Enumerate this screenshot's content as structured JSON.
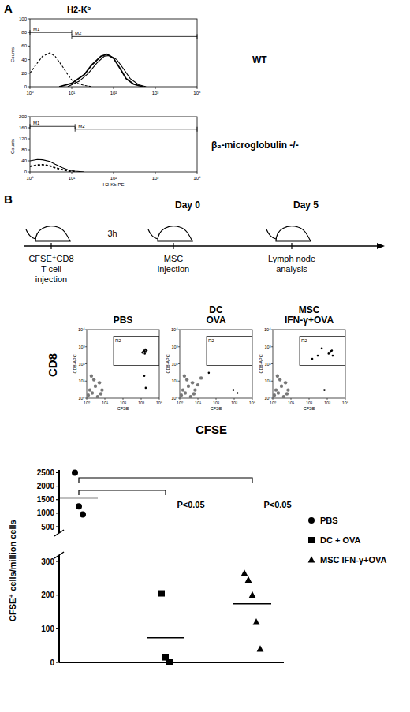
{
  "panel_labels": [
    "A",
    "B"
  ],
  "shared_labels": {
    "dot_plot_y": "CD8",
    "dot_plot_x": "CFSE"
  },
  "timeline": {
    "steps": [
      [
        "CFSE⁺CD8",
        "T cell",
        "injection"
      ],
      [
        "MSC",
        "injection"
      ],
      [
        "Lymph node",
        "analysis"
      ]
    ],
    "interval": "3h",
    "day_labels": [
      {
        "label": "Day 0",
        "step": 1
      },
      {
        "label": "Day 5",
        "step": 2
      }
    ]
  },
  "chart_data": [
    {
      "type": "line",
      "title": "H2-Kᵇ",
      "subtitle": "WT",
      "y_label": "Counts",
      "log": "x",
      "xlim": [
        1,
        10000
      ],
      "xticks": [
        {
          "value": 1,
          "label": "10⁰"
        },
        {
          "value": 10,
          "label": "10¹"
        },
        {
          "value": 100,
          "label": "10²"
        },
        {
          "value": 1000,
          "label": "10³"
        },
        {
          "value": 10000,
          "label": "10⁴"
        }
      ],
      "ylim": [
        0,
        100
      ],
      "yticks": [
        0,
        20,
        40,
        60,
        80,
        100
      ],
      "series": [
        {
          "color": "#000000",
          "line_style": "dashed",
          "x": [
            1,
            1.5,
            2,
            3,
            4,
            6,
            8,
            10,
            15,
            20,
            30
          ],
          "values": [
            20,
            35,
            45,
            50,
            45,
            30,
            18,
            10,
            4,
            2,
            0
          ]
        },
        {
          "color": "#000000",
          "line_style": "solid",
          "x": [
            5,
            10,
            20,
            30,
            50,
            70,
            100,
            150,
            200,
            300,
            500
          ],
          "values": [
            0,
            5,
            18,
            32,
            45,
            48,
            42,
            25,
            12,
            4,
            0
          ]
        },
        {
          "color": "#000000",
          "line_style": "solid",
          "x": [
            8,
            15,
            25,
            40,
            60,
            80,
            120,
            180,
            250,
            400,
            600
          ],
          "values": [
            0,
            8,
            20,
            35,
            45,
            46,
            40,
            25,
            12,
            3,
            0
          ]
        }
      ],
      "gates": [
        {
          "label": "M1",
          "x": [
            1,
            10
          ],
          "y": 80
        },
        {
          "label": "M2",
          "x": [
            10,
            10000
          ],
          "y": 74
        }
      ]
    },
    {
      "type": "line",
      "subtitle": "β₂-microglobulin -/-",
      "y_label": "Counts",
      "x_label": "H2-Kb-PE",
      "log": "x",
      "xlim": [
        1,
        10000
      ],
      "xticks": [
        {
          "value": 1,
          "label": "10⁰"
        },
        {
          "value": 10,
          "label": "10¹"
        },
        {
          "value": 100,
          "label": "10²"
        },
        {
          "value": 1000,
          "label": "10³"
        },
        {
          "value": 10000,
          "label": "10⁴"
        }
      ],
      "ylim": [
        0,
        200
      ],
      "yticks": [
        0,
        40,
        80,
        120,
        160,
        200
      ],
      "series": [
        {
          "color": "#000000",
          "line_style": "solid",
          "x": [
            1,
            1.5,
            2,
            3,
            4,
            6,
            8,
            12,
            20
          ],
          "values": [
            40,
            45,
            44,
            38,
            28,
            15,
            8,
            3,
            0
          ]
        },
        {
          "color": "#000000",
          "line_style": "dashed",
          "x": [
            1,
            1.5,
            2,
            3,
            4,
            6,
            8,
            12
          ],
          "values": [
            20,
            25,
            26,
            22,
            15,
            8,
            4,
            0
          ]
        }
      ],
      "gates": [
        {
          "label": "M1",
          "x": [
            1,
            12
          ],
          "y": 165
        },
        {
          "label": "M2",
          "x": [
            12,
            10000
          ],
          "y": 155
        }
      ]
    },
    {
      "type": "scatter",
      "title": [
        "PBS"
      ],
      "x_label": "CFSE",
      "y_label": "CD8-APC",
      "log": true,
      "xlim": [
        1,
        10000
      ],
      "ylim": [
        1,
        10000
      ],
      "xticks": [
        {
          "value": 1,
          "label": "10⁰"
        },
        {
          "value": 10,
          "label": "10¹"
        },
        {
          "value": 100,
          "label": "10²"
        },
        {
          "value": 1000,
          "label": "10³"
        },
        {
          "value": 10000,
          "label": "10⁴"
        }
      ],
      "yticks": [
        {
          "value": 1,
          "label": "10⁰"
        },
        {
          "value": 10,
          "label": "10¹"
        },
        {
          "value": 100,
          "label": "10²"
        },
        {
          "value": 1000,
          "label": "10³"
        },
        {
          "value": 10000,
          "label": "10⁴"
        }
      ],
      "gate": {
        "label": "R2",
        "x": [
          30,
          10000
        ],
        "y": [
          80,
          4000
        ]
      },
      "series": [
        {
          "color": "#777777",
          "x": [
            1.2,
            1.5,
            2,
            3,
            4,
            5,
            7,
            2.5,
            1.8,
            6
          ],
          "values": [
            1.5,
            3,
            2,
            5,
            1.2,
            8,
            3,
            12,
            20,
            1.8
          ]
        },
        {
          "color": "#000000",
          "x": [
            1200,
            1500,
            1800,
            1400,
            1600,
            2000,
            1300,
            1700,
            1500,
            1800
          ],
          "values": [
            450,
            550,
            500,
            600,
            400,
            620,
            520,
            700,
            20,
            4
          ]
        }
      ]
    },
    {
      "type": "scatter",
      "title": [
        "DC",
        "OVA"
      ],
      "x_label": "CFSE",
      "y_label": "CD8-APC",
      "log": true,
      "xlim": [
        1,
        10000
      ],
      "ylim": [
        1,
        10000
      ],
      "xticks": [
        {
          "value": 1,
          "label": "10⁰"
        },
        {
          "value": 10,
          "label": "10¹"
        },
        {
          "value": 100,
          "label": "10²"
        },
        {
          "value": 1000,
          "label": "10³"
        },
        {
          "value": 10000,
          "label": "10⁴"
        }
      ],
      "yticks": [
        {
          "value": 1,
          "label": "10⁰"
        },
        {
          "value": 10,
          "label": "10¹"
        },
        {
          "value": 100,
          "label": "10²"
        },
        {
          "value": 1000,
          "label": "10³"
        },
        {
          "value": 10000,
          "label": "10⁴"
        }
      ],
      "gate": {
        "label": "R2",
        "x": [
          30,
          10000
        ],
        "y": [
          80,
          4000
        ]
      },
      "series": [
        {
          "color": "#777777",
          "x": [
            1.2,
            1.5,
            2,
            3,
            4,
            5,
            7,
            2.5,
            1.8,
            6,
            10,
            15
          ],
          "values": [
            1.5,
            3,
            2,
            5,
            1.2,
            8,
            3,
            12,
            20,
            1.8,
            6,
            15
          ]
        },
        {
          "color": "#000000",
          "x": [
            40,
            900,
            1500
          ],
          "values": [
            30,
            3,
            2
          ]
        }
      ]
    },
    {
      "type": "scatter",
      "title": [
        "MSC",
        "IFN-γ+OVA"
      ],
      "x_label": "CFSE",
      "y_label": "CD8-APC",
      "log": true,
      "xlim": [
        1,
        10000
      ],
      "ylim": [
        1,
        10000
      ],
      "xticks": [
        {
          "value": 1,
          "label": "10⁰"
        },
        {
          "value": 10,
          "label": "10¹"
        },
        {
          "value": 100,
          "label": "10²"
        },
        {
          "value": 1000,
          "label": "10³"
        },
        {
          "value": 10000,
          "label": "10⁴"
        }
      ],
      "yticks": [
        {
          "value": 1,
          "label": "10⁰"
        },
        {
          "value": 10,
          "label": "10¹"
        },
        {
          "value": 100,
          "label": "10²"
        },
        {
          "value": 1000,
          "label": "10³"
        },
        {
          "value": 10000,
          "label": "10⁴"
        }
      ],
      "gate": {
        "label": "R2",
        "x": [
          30,
          10000
        ],
        "y": [
          80,
          4000
        ]
      },
      "series": [
        {
          "color": "#777777",
          "x": [
            1.2,
            1.5,
            2,
            3,
            4,
            5,
            7,
            2.5,
            1.8,
            6
          ],
          "values": [
            1.5,
            3,
            2,
            5,
            1.2,
            8,
            3,
            12,
            20,
            1.8
          ]
        },
        {
          "color": "#000000",
          "x": [
            1500,
            1800,
            1200,
            300,
            500,
            2000,
            150,
            1600,
            700
          ],
          "values": [
            500,
            600,
            400,
            300,
            800,
            300,
            200,
            550,
            3
          ]
        }
      ]
    },
    {
      "type": "scatter",
      "y_label": "CFSE⁺ cells/million cells",
      "ylim": [
        0,
        2600
      ],
      "y_break": [
        300,
        500
      ],
      "yticks": [
        0,
        100,
        200,
        300,
        500,
        1000,
        1500,
        2000,
        2500
      ],
      "legend": "right",
      "series": [
        {
          "name": "PBS",
          "marker": "circle",
          "color": "#000000",
          "values": [
            2500,
            1250,
            950
          ],
          "mean": 1567
        },
        {
          "name": "DC + OVA",
          "marker": "square",
          "color": "#000000",
          "values": [
            205,
            15,
            0
          ],
          "mean": 73
        },
        {
          "name": "MSC IFN-γ+OVA",
          "marker": "triangle",
          "color": "#000000",
          "values": [
            265,
            245,
            200,
            120,
            40
          ],
          "mean": 174
        }
      ],
      "comparisons": [
        {
          "from": 0,
          "to": 1,
          "label": "P<0.05"
        },
        {
          "from": 0,
          "to": 2,
          "label": "P<0.05"
        }
      ]
    }
  ]
}
